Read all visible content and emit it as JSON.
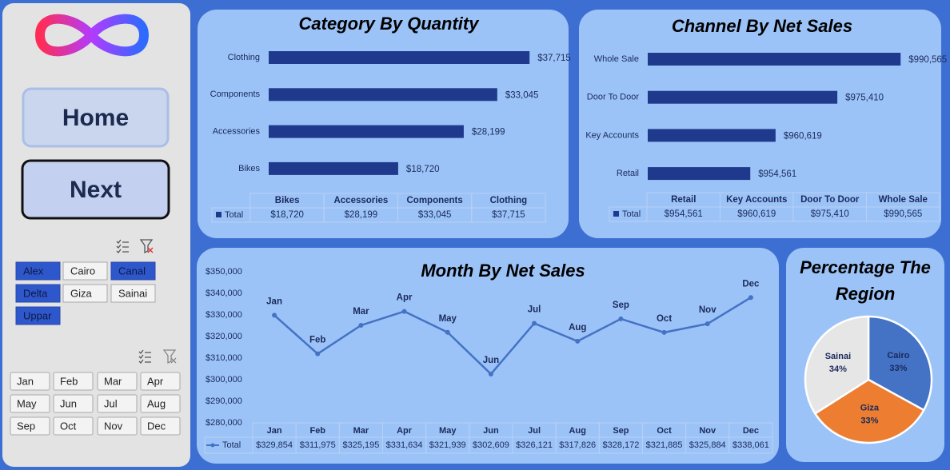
{
  "sidebar": {
    "buttons": [
      "Home",
      "Next"
    ],
    "region_slicer": [
      {
        "label": "Alex",
        "selected": true
      },
      {
        "label": "Cairo",
        "selected": false
      },
      {
        "label": "Canal",
        "selected": true
      },
      {
        "label": "Delta",
        "selected": true
      },
      {
        "label": "Giza",
        "selected": false
      },
      {
        "label": "Sainai",
        "selected": false
      },
      {
        "label": "Uppar",
        "selected": true
      }
    ],
    "month_slicer": [
      "Jan",
      "Feb",
      "Mar",
      "Apr",
      "May",
      "Jun",
      "Jul",
      "Aug",
      "Sep",
      "Oct",
      "Nov",
      "Dec"
    ]
  },
  "chart_data": [
    {
      "type": "hbar",
      "title": "Category By Quantity",
      "series_name": "Total",
      "color": "#1f3a8c",
      "categories": [
        "Bikes",
        "Accessories",
        "Components",
        "Clothing"
      ],
      "values": [
        18720,
        28199,
        33045,
        37715
      ],
      "value_labels": [
        "$18,720",
        "$28,199",
        "$33,045",
        "$37,715"
      ],
      "xlim": [
        0,
        40000
      ]
    },
    {
      "type": "hbar",
      "title": "Channel By Net Sales",
      "series_name": "Total",
      "color": "#1f3a8c",
      "categories": [
        "Retail",
        "Key Accounts",
        "Door To Door",
        "Whole Sale"
      ],
      "values": [
        954561,
        960619,
        975410,
        990565
      ],
      "value_labels": [
        "$954,561",
        "$960,619",
        "$975,410",
        "$990,565"
      ],
      "xlim": [
        930000,
        1000000
      ]
    },
    {
      "type": "line",
      "title": "Month By Net Sales",
      "series_name": "Total",
      "color": "#4472c4",
      "categories": [
        "Jan",
        "Feb",
        "Mar",
        "Apr",
        "May",
        "Jun",
        "Jul",
        "Aug",
        "Sep",
        "Oct",
        "Nov",
        "Dec"
      ],
      "values": [
        329854,
        311975,
        325195,
        331634,
        321939,
        302609,
        326121,
        317826,
        328172,
        321885,
        325884,
        338061
      ],
      "value_labels": [
        "$329,854",
        "$311,975",
        "$325,195",
        "$331,634",
        "$321,939",
        "$302,609",
        "$326,121",
        "$317,826",
        "$328,172",
        "$321,885",
        "$325,884",
        "$338,061"
      ],
      "ylim": [
        280000,
        350000
      ],
      "yticks": [
        {
          "value": 280000,
          "label": "$280,000"
        },
        {
          "value": 290000,
          "label": "$290,000"
        },
        {
          "value": 300000,
          "label": "$300,000"
        },
        {
          "value": 310000,
          "label": "$310,000"
        },
        {
          "value": 320000,
          "label": "$320,000"
        },
        {
          "value": 330000,
          "label": "$330,000"
        },
        {
          "value": 340000,
          "label": "$340,000"
        },
        {
          "value": 350000,
          "label": "$350,000"
        }
      ]
    },
    {
      "type": "pie",
      "title": "Percentage The Region",
      "categories": [
        "Cairo",
        "Giza",
        "Sainai"
      ],
      "values": [
        33,
        33,
        34
      ],
      "value_labels": [
        "33%",
        "33%",
        "34%"
      ],
      "colors": [
        "#4472c4",
        "#ed7d31",
        "#e7e6e6"
      ]
    }
  ]
}
